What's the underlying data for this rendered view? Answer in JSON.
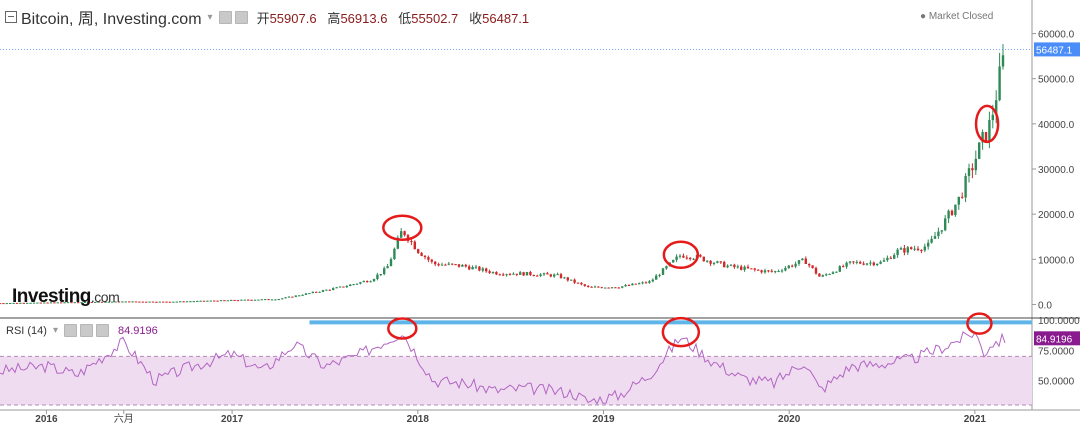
{
  "header": {
    "title": "Bitcoin, 周, Investing.com",
    "open_label": "开",
    "open": "55907.6",
    "high_label": "高",
    "high": "56913.6",
    "low_label": "低",
    "low": "55502.7",
    "close_label": "收",
    "close": "56487.1",
    "market_status": "Market Closed"
  },
  "logo": {
    "main": "Investing",
    "suffix": ".com"
  },
  "rsi": {
    "label": "RSI (14)",
    "value": "84.9196"
  },
  "colors": {
    "up": "#2f8a58",
    "down": "#d12a2a",
    "rsi_line": "#b066c2",
    "rsi_fill": "#f0dcf0",
    "price_tag": "#4b8df8",
    "rsi_tag": "#8a1b8e",
    "annotation": "#e51b1b",
    "resistance": "#5fb4e8"
  },
  "chart_data": {
    "type": "line",
    "description_note": "weekly candlestick price chart with RSI(14) panel",
    "x_ticks": [
      "2016",
      "六月",
      "2017",
      "2018",
      "2019",
      "2020",
      "2021"
    ],
    "x_tick_dates": [
      "2016-01",
      "2016-06",
      "2017-01",
      "2018-01",
      "2019-01",
      "2020-01",
      "2021-01"
    ],
    "y_ticks": [
      "60000.0",
      "50000.0",
      "40000.0",
      "30000.0",
      "20000.0",
      "10000.0",
      "0.0"
    ],
    "y_tick_values": [
      60000,
      50000,
      40000,
      30000,
      20000,
      10000,
      0
    ],
    "ylim": [
      -3000,
      63000
    ],
    "last_price_label": "56487.1",
    "last_price": 56487.1,
    "series": [
      {
        "values": [
          [
            "2015-10",
            300
          ],
          [
            "2016-01",
            420
          ],
          [
            "2016-06",
            650
          ],
          [
            "2016-09",
            600
          ],
          [
            "2017-01",
            950
          ],
          [
            "2017-04",
            1200
          ],
          [
            "2017-06",
            2500
          ],
          [
            "2017-08",
            3800
          ],
          [
            "2017-10",
            5500
          ],
          [
            "2017-11",
            8000
          ],
          [
            "2017-12",
            16500
          ],
          [
            "2018-01",
            12000
          ],
          [
            "2018-02",
            9000
          ],
          [
            "2018-04",
            8500
          ],
          [
            "2018-06",
            7000
          ],
          [
            "2018-08",
            6800
          ],
          [
            "2018-10",
            6400
          ],
          [
            "2018-12",
            3800
          ],
          [
            "2019-02",
            3900
          ],
          [
            "2019-04",
            5000
          ],
          [
            "2019-06",
            11000
          ],
          [
            "2019-07",
            10500
          ],
          [
            "2019-09",
            8500
          ],
          [
            "2019-11",
            7500
          ],
          [
            "2019-12",
            7200
          ],
          [
            "2020-02",
            9800
          ],
          [
            "2020-03",
            6000
          ],
          [
            "2020-05",
            9200
          ],
          [
            "2020-07",
            9300
          ],
          [
            "2020-08",
            11800
          ],
          [
            "2020-10",
            13000
          ],
          [
            "2020-11",
            18000
          ],
          [
            "2020-12",
            23500
          ],
          [
            "2021-01",
            32000
          ],
          [
            "2021-01-15",
            36000
          ],
          [
            "2021-02",
            40000
          ],
          [
            "2021-02-15",
            48000
          ],
          [
            "2021-03",
            56487
          ]
        ]
      }
    ],
    "rsi_ticks": [
      "100.0000",
      "75.0000",
      "50.0000"
    ],
    "rsi_tick_values": [
      100,
      75,
      50
    ],
    "rsi_ylim": [
      30,
      100
    ],
    "rsi_bands": [
      70,
      30
    ],
    "rsi_values": [
      [
        "2015-10",
        58
      ],
      [
        "2016-01",
        62
      ],
      [
        "2016-03",
        55
      ],
      [
        "2016-06",
        82
      ],
      [
        "2016-08",
        50
      ],
      [
        "2016-10",
        60
      ],
      [
        "2017-01",
        72
      ],
      [
        "2017-03",
        58
      ],
      [
        "2017-05",
        80
      ],
      [
        "2017-07",
        62
      ],
      [
        "2017-09",
        70
      ],
      [
        "2017-12",
        90
      ],
      [
        "2018-02",
        50
      ],
      [
        "2018-04",
        48
      ],
      [
        "2018-06",
        42
      ],
      [
        "2018-08",
        44
      ],
      [
        "2018-11",
        40
      ],
      [
        "2018-12",
        33
      ],
      [
        "2019-02",
        38
      ],
      [
        "2019-04",
        55
      ],
      [
        "2019-06",
        86
      ],
      [
        "2019-08",
        66
      ],
      [
        "2019-10",
        52
      ],
      [
        "2019-12",
        48
      ],
      [
        "2020-02",
        66
      ],
      [
        "2020-03",
        42
      ],
      [
        "2020-05",
        62
      ],
      [
        "2020-07",
        64
      ],
      [
        "2020-09",
        68
      ],
      [
        "2020-11",
        78
      ],
      [
        "2020-12",
        84
      ],
      [
        "2021-01",
        90
      ],
      [
        "2021-01-20",
        72
      ],
      [
        "2021-02",
        80
      ],
      [
        "2021-03",
        84.9196
      ]
    ],
    "rsi_last_label": "84.9196"
  }
}
